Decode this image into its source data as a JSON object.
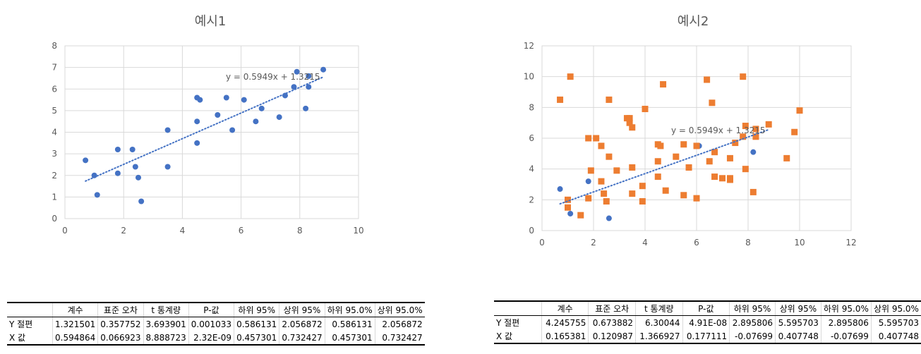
{
  "chart_data": [
    {
      "type": "scatter",
      "title": "예시1",
      "xlim": [
        0,
        10
      ],
      "ylim": [
        0,
        8
      ],
      "xticks": [
        "0",
        "2",
        "4",
        "6",
        "8",
        "10"
      ],
      "yticks": [
        "0",
        "1",
        "2",
        "3",
        "4",
        "5",
        "6",
        "7",
        "8"
      ],
      "grid": true,
      "series": [
        {
          "color": "#4472c4",
          "marker": "circle",
          "points": [
            [
              0.7,
              2.7
            ],
            [
              1.0,
              2.0
            ],
            [
              1.1,
              1.1
            ],
            [
              1.8,
              3.2
            ],
            [
              1.8,
              2.1
            ],
            [
              2.3,
              3.2
            ],
            [
              2.4,
              2.4
            ],
            [
              2.5,
              1.9
            ],
            [
              2.6,
              0.8
            ],
            [
              3.5,
              4.1
            ],
            [
              3.5,
              2.4
            ],
            [
              4.5,
              5.6
            ],
            [
              4.6,
              5.5
            ],
            [
              4.5,
              4.5
            ],
            [
              4.5,
              3.5
            ],
            [
              5.2,
              4.8
            ],
            [
              5.5,
              5.6
            ],
            [
              5.7,
              4.1
            ],
            [
              6.1,
              5.5
            ],
            [
              6.5,
              4.5
            ],
            [
              6.7,
              5.1
            ],
            [
              7.3,
              4.7
            ],
            [
              7.5,
              5.7
            ],
            [
              7.8,
              6.1
            ],
            [
              7.9,
              6.8
            ],
            [
              8.2,
              5.1
            ],
            [
              8.3,
              6.1
            ],
            [
              8.3,
              6.6
            ],
            [
              8.8,
              6.9
            ]
          ]
        }
      ],
      "trendline": {
        "equation": "y = 0.5949x + 1.3215",
        "slope": 0.5949,
        "intercept": 1.3215,
        "x_range": [
          0.7,
          8.8
        ],
        "color": "#4472c4",
        "style": "dotted"
      }
    },
    {
      "type": "scatter",
      "title": "예시2",
      "xlim": [
        0,
        12
      ],
      "ylim": [
        0,
        12
      ],
      "xticks": [
        "0",
        "2",
        "4",
        "6",
        "8",
        "10",
        "12"
      ],
      "yticks": [
        "0",
        "2",
        "4",
        "6",
        "8",
        "10",
        "12"
      ],
      "grid": true,
      "series": [
        {
          "color": "#4472c4",
          "marker": "circle",
          "points": [
            [
              0.7,
              2.7
            ],
            [
              1.0,
              2.0
            ],
            [
              1.1,
              1.1
            ],
            [
              1.8,
              3.2
            ],
            [
              1.8,
              2.1
            ],
            [
              2.3,
              3.2
            ],
            [
              2.4,
              2.4
            ],
            [
              2.5,
              1.9
            ],
            [
              2.6,
              0.8
            ],
            [
              3.5,
              4.1
            ],
            [
              3.5,
              2.4
            ],
            [
              4.5,
              5.6
            ],
            [
              4.6,
              5.5
            ],
            [
              4.5,
              4.5
            ],
            [
              4.5,
              3.5
            ],
            [
              5.2,
              4.8
            ],
            [
              5.5,
              5.6
            ],
            [
              5.7,
              4.1
            ],
            [
              6.1,
              5.5
            ],
            [
              6.5,
              4.5
            ],
            [
              6.7,
              5.1
            ],
            [
              7.3,
              4.7
            ],
            [
              7.5,
              5.7
            ],
            [
              7.8,
              6.1
            ],
            [
              7.9,
              6.8
            ],
            [
              8.2,
              5.1
            ],
            [
              8.3,
              6.1
            ],
            [
              8.3,
              6.6
            ],
            [
              8.8,
              6.9
            ]
          ]
        },
        {
          "color": "#ed7d31",
          "marker": "square",
          "points": [
            [
              0.7,
              8.5
            ],
            [
              1.0,
              1.5
            ],
            [
              1.0,
              2.0
            ],
            [
              1.1,
              10.0
            ],
            [
              1.5,
              1.0
            ],
            [
              1.8,
              6.0
            ],
            [
              1.8,
              2.1
            ],
            [
              1.9,
              3.9
            ],
            [
              2.1,
              6.0
            ],
            [
              2.3,
              5.5
            ],
            [
              2.3,
              3.2
            ],
            [
              2.4,
              2.4
            ],
            [
              2.5,
              1.9
            ],
            [
              2.6,
              8.5
            ],
            [
              2.6,
              4.8
            ],
            [
              2.9,
              3.9
            ],
            [
              3.3,
              7.3
            ],
            [
              3.4,
              7.0
            ],
            [
              3.4,
              7.3
            ],
            [
              3.5,
              6.7
            ],
            [
              3.5,
              4.1
            ],
            [
              3.5,
              2.4
            ],
            [
              3.9,
              2.9
            ],
            [
              3.9,
              1.9
            ],
            [
              4.0,
              7.9
            ],
            [
              4.5,
              5.6
            ],
            [
              4.5,
              4.5
            ],
            [
              4.5,
              3.5
            ],
            [
              4.6,
              5.5
            ],
            [
              4.7,
              9.5
            ],
            [
              4.8,
              2.6
            ],
            [
              5.2,
              4.8
            ],
            [
              5.5,
              5.6
            ],
            [
              5.5,
              2.3
            ],
            [
              5.7,
              4.1
            ],
            [
              6.0,
              2.1
            ],
            [
              6.0,
              5.5
            ],
            [
              6.4,
              9.8
            ],
            [
              6.5,
              4.5
            ],
            [
              6.6,
              8.3
            ],
            [
              6.7,
              5.1
            ],
            [
              6.7,
              3.5
            ],
            [
              7.0,
              3.4
            ],
            [
              7.3,
              4.7
            ],
            [
              7.3,
              3.4
            ],
            [
              7.3,
              3.3
            ],
            [
              7.5,
              5.7
            ],
            [
              7.8,
              10.0
            ],
            [
              7.8,
              6.1
            ],
            [
              7.9,
              6.8
            ],
            [
              7.9,
              4.0
            ],
            [
              8.2,
              2.5
            ],
            [
              8.3,
              6.6
            ],
            [
              8.3,
              6.1
            ],
            [
              8.8,
              6.9
            ],
            [
              9.5,
              4.7
            ],
            [
              9.8,
              6.4
            ],
            [
              10.0,
              7.8
            ]
          ]
        }
      ],
      "trendline": {
        "equation": "y = 0.5949x + 1.3215",
        "slope": 0.5949,
        "intercept": 1.3215,
        "x_range": [
          0.7,
          8.8
        ],
        "color": "#4472c4",
        "style": "dotted"
      }
    }
  ],
  "tables": [
    {
      "headers": [
        "",
        "계수",
        "표준 오차",
        "t 통계량",
        "P-값",
        "하위 95%",
        "상위 95%",
        "하위 95.0%",
        "상위 95.0%"
      ],
      "rows": [
        [
          "Y 절편",
          "1.321501",
          "0.357752",
          "3.693901",
          "0.001033",
          "0.586131",
          "2.056872",
          "0.586131",
          "2.056872"
        ],
        [
          "X 값",
          "0.594864",
          "0.066923",
          "8.888723",
          "2.32E-09",
          "0.457301",
          "0.732427",
          "0.457301",
          "0.732427"
        ]
      ]
    },
    {
      "headers": [
        "",
        "계수",
        "표준 오차",
        "t 통계량",
        "P-값",
        "하위 95%",
        "상위 95%",
        "하위 95.0%",
        "상위 95.0%"
      ],
      "rows": [
        [
          "Y 절편",
          "4.245755",
          "0.673882",
          "6.30044",
          "4.91E-08",
          "2.895806",
          "5.595703",
          "2.895806",
          "5.595703"
        ],
        [
          "X 값",
          "0.165381",
          "0.120987",
          "1.366927",
          "0.177111",
          "-0.07699",
          "0.407748",
          "-0.07699",
          "0.407748"
        ]
      ]
    }
  ]
}
